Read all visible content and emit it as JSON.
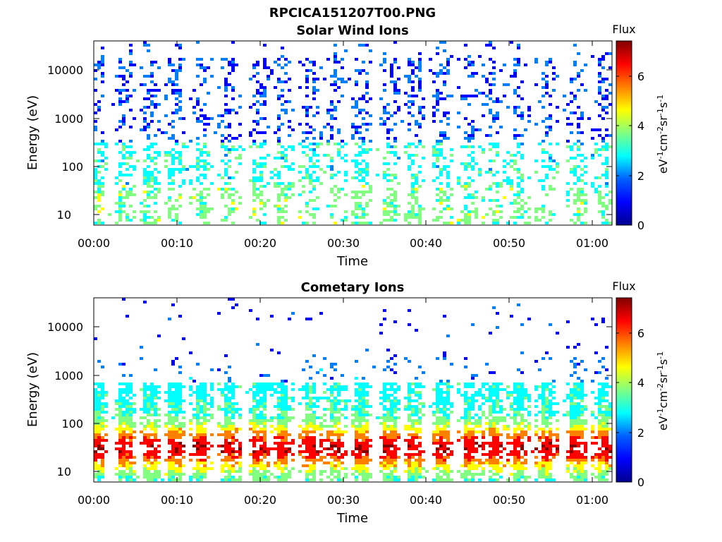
{
  "figure": {
    "main_title": "RPCICA151207T00.PNG"
  },
  "colormap": [
    "#00008f",
    "#0000ff",
    "#0080ff",
    "#00ffff",
    "#80ff80",
    "#ffff00",
    "#ff8000",
    "#ff0000",
    "#800000"
  ],
  "chart_data": [
    {
      "type": "heatmap",
      "title": "Solar Wind Ions",
      "xlabel": "Time",
      "ylabel": "Energy (eV)",
      "x_ticks": [
        "00:00",
        "00:10",
        "00:20",
        "00:30",
        "00:40",
        "00:50",
        "01:00"
      ],
      "x_range_min": [
        0,
        62.5
      ],
      "y_scale": "log",
      "y_ticks": [
        "10",
        "100",
        "1000",
        "10000"
      ],
      "y_range_eV": [
        6,
        45000
      ],
      "colorbar": {
        "label": "Flux",
        "units": "eV-1cm-2sr-1s-1",
        "range": [
          0,
          7.4
        ],
        "ticks": [
          "0",
          "2",
          "4",
          "6"
        ]
      },
      "bursts_min": [
        0.3,
        3.7,
        6.7,
        9.8,
        12.9,
        16.3,
        19.9,
        22.7,
        26.1,
        29.1,
        32.3,
        35.7,
        38.8,
        42.0,
        45.2,
        48.2,
        51.2,
        54.7,
        58.2,
        61.4
      ],
      "pattern": "sparse blue pixels 300 eV - 15 keV, cyan/green streaks 10 - 300 eV",
      "peak_flux": 4.6
    },
    {
      "type": "heatmap",
      "title": "Cometary Ions",
      "xlabel": "Time",
      "ylabel": "Energy (eV)",
      "x_ticks": [
        "00:00",
        "00:10",
        "00:20",
        "00:30",
        "00:40",
        "00:50",
        "01:00"
      ],
      "x_range_min": [
        0,
        62.5
      ],
      "y_scale": "log",
      "y_ticks": [
        "10",
        "100",
        "1000",
        "10000"
      ],
      "y_range_eV": [
        6,
        45000
      ],
      "colorbar": {
        "label": "Flux",
        "units": "eV-1cm-2sr-1s-1",
        "range": [
          0,
          7.4
        ],
        "ticks": [
          "0",
          "2",
          "4",
          "6"
        ]
      },
      "bursts_min": [
        0.3,
        3.7,
        6.7,
        9.8,
        12.9,
        16.3,
        19.9,
        22.7,
        26.1,
        29.1,
        32.3,
        35.7,
        38.8,
        42.0,
        45.2,
        48.2,
        51.2,
        54.7,
        58.2,
        61.4
      ],
      "pattern": "dense columns 6 - 600 eV, yellow/orange core near 20 - 50 eV, sparse blue pixels up to 10 keV",
      "peak_flux": 6.9
    }
  ]
}
